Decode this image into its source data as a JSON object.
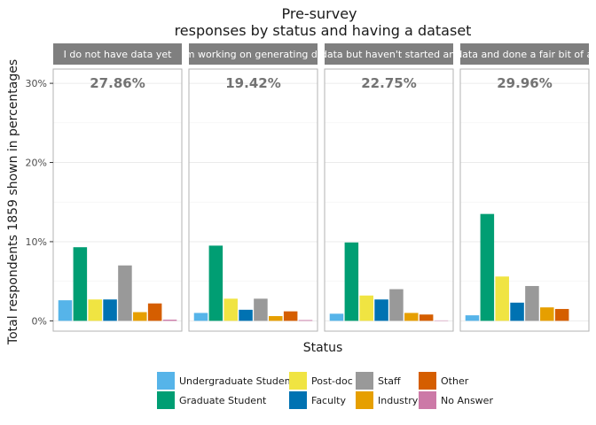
{
  "chart_data": {
    "type": "bar",
    "title": "Pre-survey",
    "subtitle": "responses by status and having a dataset",
    "xlabel": "Status",
    "ylabel": "Total respondents 1859 shown in percentages",
    "ylim": [
      -1.3,
      31.8
    ],
    "y_ticks": [
      0,
      10,
      20,
      30
    ],
    "y_tick_labels": [
      "0%",
      "10%",
      "20%",
      "30%"
    ],
    "grid": true,
    "legend_position": "bottom",
    "categories": [
      "Undergraduate Student",
      "Graduate Student",
      "Post-doc",
      "Faculty",
      "Staff",
      "Industry",
      "Other",
      "No Answer"
    ],
    "colors": [
      "#56B4E9",
      "#009E73",
      "#F0E442",
      "#0072B2",
      "#999999",
      "#E69F00",
      "#D55E00",
      "#CC79A7"
    ],
    "panels": [
      {
        "label": "I do not have data yet",
        "total_label": "27.86%",
        "values": [
          2.6,
          9.3,
          2.7,
          2.7,
          7.0,
          1.1,
          2.2,
          0.15
        ]
      },
      {
        "label": "I am working on generating data",
        "total_label": "19.42%",
        "values": [
          1.0,
          9.5,
          2.8,
          1.4,
          2.8,
          0.6,
          1.2,
          0.1
        ]
      },
      {
        "label": "I have data but haven't started analyzing",
        "total_label": "22.75%",
        "values": [
          0.9,
          9.9,
          3.2,
          2.7,
          4.0,
          1.0,
          0.8,
          0.05
        ]
      },
      {
        "label": "I have data and done a fair bit of analysis",
        "total_label": "29.96%",
        "values": [
          0.7,
          13.5,
          5.6,
          2.3,
          4.4,
          1.7,
          1.5,
          0.0
        ]
      }
    ]
  }
}
